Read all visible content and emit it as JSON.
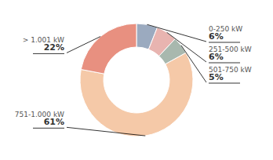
{
  "chart_data": {
    "type": "pie",
    "categories": [
      "0-250 kW",
      "251-500 kW",
      "501-750 kW",
      "751-1.000 kW",
      "> 1.001 kW"
    ],
    "values": [
      6,
      6,
      5,
      61,
      22
    ],
    "value_labels": [
      "6%",
      "6%",
      "5%",
      "61%",
      "22%"
    ],
    "colors": [
      "#9baabf",
      "#e8b4b0",
      "#a8b8ae",
      "#f5c9a8",
      "#e89080"
    ],
    "data_labels": true
  }
}
